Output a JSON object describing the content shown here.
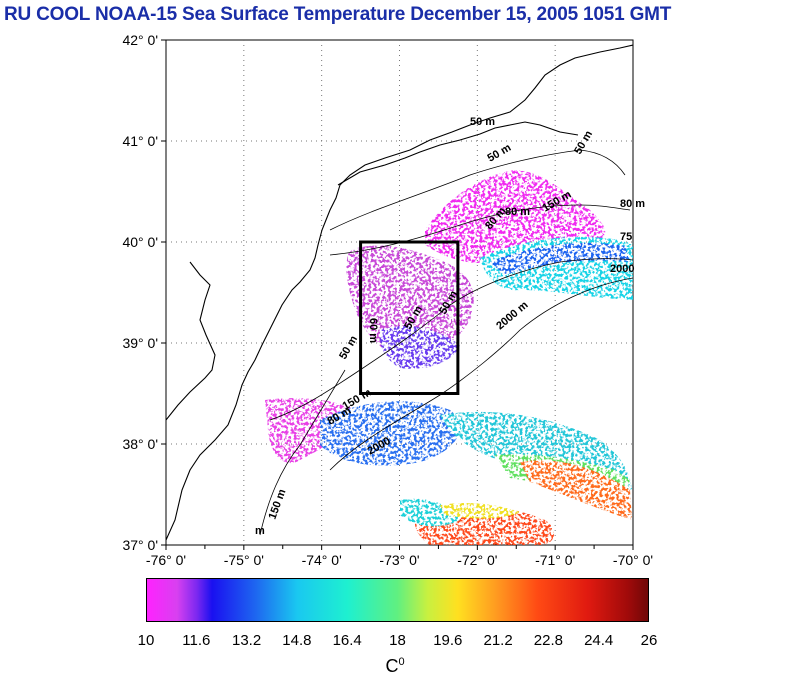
{
  "title": "RU COOL  NOAA-15 Sea Surface Temperature December 15, 2005 1051 GMT",
  "map": {
    "lat_labels": [
      "42° 0'",
      "41° 0'",
      "40° 0'",
      "39° 0'",
      "38° 0'",
      "37° 0'"
    ],
    "lon_labels": [
      "-76° 0'",
      "-75° 0'",
      "-74° 0'",
      "-73° 0'",
      "-72° 0'",
      "-71° 0'",
      "-70° 0'"
    ],
    "lat_range": [
      37,
      42
    ],
    "lon_range": [
      -76,
      -70
    ],
    "box": {
      "lon_min": -73.5,
      "lon_max": -72.25,
      "lat_min": 38.5,
      "lat_max": 40.0
    },
    "isobath_labels": [
      "50 m",
      "50 m",
      "80 m",
      "80 m",
      "50 m",
      "150 m",
      "75",
      "2000",
      "2000 m",
      "50 m",
      "60 m",
      "50 m",
      "50 m",
      "80 m",
      "150 m",
      "2000",
      "150 m",
      "m",
      "80 m"
    ],
    "colors": {
      "land": "#ffffff",
      "coast": "#000000",
      "box": "#000000",
      "title": "#1a2ea8"
    }
  },
  "colorbar": {
    "ticks": [
      "10",
      "11.6",
      "13.2",
      "14.8",
      "16.4",
      "18",
      "19.6",
      "21.2",
      "22.8",
      "24.4",
      "26"
    ],
    "unit": "C",
    "unit_sup": "0",
    "min": 10,
    "max": 26
  }
}
